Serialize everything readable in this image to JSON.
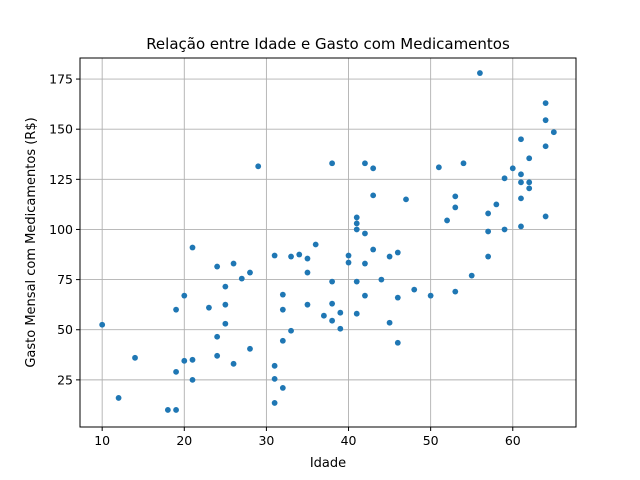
{
  "chart_data": {
    "type": "scatter",
    "title": "Relação entre Idade e Gasto com Medicamentos",
    "xlabel": "Idade",
    "ylabel": "Gasto Mensal com Medicamentos (R$)",
    "xlim": [
      7.3,
      67.7
    ],
    "ylim": [
      1.5,
      185.5
    ],
    "xticks": [
      10,
      20,
      30,
      40,
      50,
      60
    ],
    "yticks": [
      25,
      50,
      75,
      100,
      125,
      150,
      175
    ],
    "grid": true,
    "color": "#1f77b4",
    "points": [
      [
        10,
        52.5
      ],
      [
        12,
        16
      ],
      [
        14,
        36
      ],
      [
        18,
        10
      ],
      [
        19,
        10
      ],
      [
        19,
        29
      ],
      [
        19,
        60
      ],
      [
        20,
        34.5
      ],
      [
        20,
        67
      ],
      [
        21,
        25
      ],
      [
        21,
        35
      ],
      [
        21,
        91
      ],
      [
        23,
        61
      ],
      [
        24,
        81.5
      ],
      [
        24,
        46.5
      ],
      [
        24,
        37
      ],
      [
        25,
        71.5
      ],
      [
        25,
        62.5
      ],
      [
        25,
        53
      ],
      [
        26,
        33
      ],
      [
        26,
        83
      ],
      [
        27,
        75.5
      ],
      [
        28,
        78.5
      ],
      [
        28,
        40.5
      ],
      [
        29,
        131.5
      ],
      [
        31,
        13.5
      ],
      [
        31,
        25.5
      ],
      [
        31,
        32
      ],
      [
        31,
        87
      ],
      [
        32,
        67.5
      ],
      [
        32,
        60
      ],
      [
        32,
        44.5
      ],
      [
        32,
        21
      ],
      [
        33,
        86.5
      ],
      [
        33,
        49.5
      ],
      [
        34,
        87.5
      ],
      [
        35,
        85.5
      ],
      [
        35,
        78.5
      ],
      [
        35,
        62.5
      ],
      [
        36,
        92.5
      ],
      [
        37,
        57
      ],
      [
        38,
        133
      ],
      [
        38,
        74
      ],
      [
        38,
        63
      ],
      [
        38,
        54.5
      ],
      [
        39,
        58.5
      ],
      [
        39,
        50.5
      ],
      [
        40,
        87
      ],
      [
        40,
        83.5
      ],
      [
        41,
        106
      ],
      [
        41,
        103
      ],
      [
        41,
        100
      ],
      [
        41,
        74
      ],
      [
        41,
        58
      ],
      [
        42,
        133
      ],
      [
        42,
        98
      ],
      [
        42,
        83
      ],
      [
        42,
        67
      ],
      [
        43,
        130.5
      ],
      [
        43,
        117
      ],
      [
        43,
        90
      ],
      [
        44,
        75
      ],
      [
        45,
        86.5
      ],
      [
        45,
        53.5
      ],
      [
        46,
        88.5
      ],
      [
        46,
        66
      ],
      [
        46,
        43.5
      ],
      [
        47,
        115
      ],
      [
        48,
        70
      ],
      [
        50,
        67
      ],
      [
        51,
        131
      ],
      [
        52,
        104.5
      ],
      [
        53,
        116.5
      ],
      [
        53,
        111
      ],
      [
        53,
        69
      ],
      [
        54,
        133
      ],
      [
        55,
        77
      ],
      [
        56,
        178
      ],
      [
        57,
        108
      ],
      [
        57,
        99
      ],
      [
        57,
        86.5
      ],
      [
        58,
        112.5
      ],
      [
        59,
        125.5
      ],
      [
        59,
        100
      ],
      [
        60,
        130.5
      ],
      [
        61,
        145
      ],
      [
        61,
        127.5
      ],
      [
        61,
        123.5
      ],
      [
        61,
        115.5
      ],
      [
        61,
        101.5
      ],
      [
        62,
        135.5
      ],
      [
        62,
        123.5
      ],
      [
        62,
        120.5
      ],
      [
        64,
        163
      ],
      [
        64,
        154.5
      ],
      [
        64,
        141.5
      ],
      [
        64,
        106.5
      ],
      [
        65,
        148.5
      ]
    ]
  }
}
